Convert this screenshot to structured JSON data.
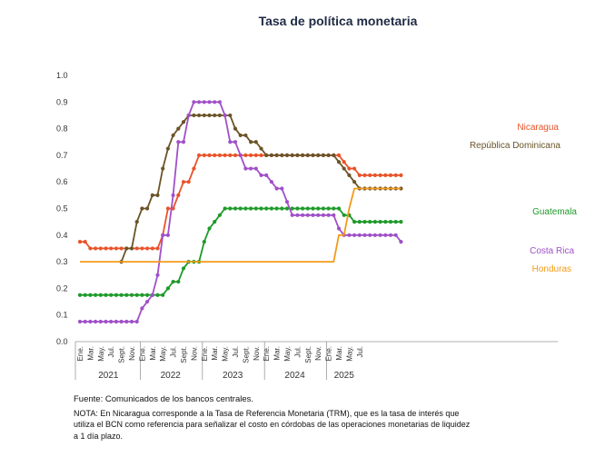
{
  "chart_data": {
    "type": "line",
    "title": "Tasa de política monetaria",
    "ylim": [
      0.0,
      1.0
    ],
    "yticks": [
      "0.0",
      "0.1",
      "0.2",
      "0.3",
      "0.4",
      "0.5",
      "0.6",
      "0.7",
      "0.8",
      "0.9",
      "1.0"
    ],
    "month_labels": [
      "Ene.",
      "Mar.",
      "May.",
      "Jul.",
      "Sept.",
      "Nov."
    ],
    "years": [
      "2021",
      "2022",
      "2023",
      "2024",
      "2025"
    ],
    "grid": false,
    "x_start": "2021-01",
    "series": [
      {
        "name": "Nicaragua",
        "color": "#e8532a",
        "marker": true,
        "values": [
          0.375,
          0.375,
          0.35,
          0.35,
          0.35,
          0.35,
          0.35,
          0.35,
          0.35,
          0.35,
          0.35,
          0.35,
          0.35,
          0.35,
          0.35,
          0.35,
          0.4,
          0.5,
          0.5,
          0.55,
          0.6,
          0.6,
          0.65,
          0.7,
          0.7,
          0.7,
          0.7,
          0.7,
          0.7,
          0.7,
          0.7,
          0.7,
          0.7,
          0.7,
          0.7,
          0.7,
          0.7,
          0.7,
          0.7,
          0.7,
          0.7,
          0.7,
          0.7,
          0.7,
          0.7,
          0.7,
          0.7,
          0.7,
          0.7,
          0.7,
          0.7,
          0.675,
          0.65,
          0.65,
          0.625,
          0.625,
          0.625,
          0.625,
          0.625,
          0.625,
          0.625,
          0.625,
          0.625
        ]
      },
      {
        "name": "República Dominicana",
        "color": "#6b5428",
        "marker": true,
        "values": [
          null,
          null,
          null,
          null,
          null,
          null,
          null,
          null,
          0.3,
          0.35,
          0.35,
          0.45,
          0.5,
          0.5,
          0.55,
          0.55,
          0.65,
          0.725,
          0.775,
          0.8,
          0.825,
          0.85,
          0.85,
          0.85,
          0.85,
          0.85,
          0.85,
          0.85,
          0.85,
          0.85,
          0.8,
          0.775,
          0.775,
          0.75,
          0.75,
          0.725,
          0.7,
          0.7,
          0.7,
          0.7,
          0.7,
          0.7,
          0.7,
          0.7,
          0.7,
          0.7,
          0.7,
          0.7,
          0.7,
          0.7,
          0.675,
          0.65,
          0.625,
          0.6,
          0.575,
          0.575,
          0.575,
          0.575,
          0.575,
          0.575,
          0.575,
          0.575,
          0.575
        ]
      },
      {
        "name": "Guatemala",
        "color": "#1e9a2a",
        "marker": true,
        "values": [
          0.175,
          0.175,
          0.175,
          0.175,
          0.175,
          0.175,
          0.175,
          0.175,
          0.175,
          0.175,
          0.175,
          0.175,
          0.175,
          0.175,
          0.175,
          0.175,
          0.175,
          0.2,
          0.225,
          0.225,
          0.275,
          0.3,
          0.3,
          0.3,
          0.375,
          0.425,
          0.45,
          0.475,
          0.5,
          0.5,
          0.5,
          0.5,
          0.5,
          0.5,
          0.5,
          0.5,
          0.5,
          0.5,
          0.5,
          0.5,
          0.5,
          0.5,
          0.5,
          0.5,
          0.5,
          0.5,
          0.5,
          0.5,
          0.5,
          0.5,
          0.5,
          0.475,
          0.475,
          0.45,
          0.45,
          0.45,
          0.45,
          0.45,
          0.45,
          0.45,
          0.45,
          0.45,
          0.45
        ]
      },
      {
        "name": "Costa Rica",
        "color": "#a050c8",
        "marker": true,
        "values": [
          0.075,
          0.075,
          0.075,
          0.075,
          0.075,
          0.075,
          0.075,
          0.075,
          0.075,
          0.075,
          0.075,
          0.075,
          0.125,
          0.15,
          0.175,
          0.25,
          0.4,
          0.4,
          0.55,
          0.75,
          0.75,
          0.85,
          0.9,
          0.9,
          0.9,
          0.9,
          0.9,
          0.9,
          0.85,
          0.75,
          0.75,
          0.7,
          0.65,
          0.65,
          0.65,
          0.625,
          0.625,
          0.6,
          0.575,
          0.575,
          0.525,
          0.475,
          0.475,
          0.475,
          0.475,
          0.475,
          0.475,
          0.475,
          0.475,
          0.475,
          0.425,
          0.4,
          0.4,
          0.4,
          0.4,
          0.4,
          0.4,
          0.4,
          0.4,
          0.4,
          0.4,
          0.4,
          0.375
        ]
      },
      {
        "name": "Honduras",
        "color": "#f39a1a",
        "marker": false,
        "values": [
          0.3,
          0.3,
          0.3,
          0.3,
          0.3,
          0.3,
          0.3,
          0.3,
          0.3,
          0.3,
          0.3,
          0.3,
          0.3,
          0.3,
          0.3,
          0.3,
          0.3,
          0.3,
          0.3,
          0.3,
          0.3,
          0.3,
          0.3,
          0.3,
          0.3,
          0.3,
          0.3,
          0.3,
          0.3,
          0.3,
          0.3,
          0.3,
          0.3,
          0.3,
          0.3,
          0.3,
          0.3,
          0.3,
          0.3,
          0.3,
          0.3,
          0.3,
          0.3,
          0.3,
          0.3,
          0.3,
          0.3,
          0.3,
          0.3,
          0.3,
          0.4,
          0.4,
          0.5,
          0.575,
          0.575,
          0.575,
          0.575,
          0.575,
          0.575,
          0.575,
          0.575,
          0.575,
          0.575
        ]
      }
    ]
  },
  "notes": {
    "source": "Fuente: Comunicados de los bancos centrales.",
    "note": "NOTA: En Nicaragua corresponde a la Tasa de Referencia Monetaria (TRM), que es la tasa de interés que utiliza el BCN como referencia para señalizar el costo en córdobas de las operaciones monetarias de liquidez a 1 día plazo."
  }
}
